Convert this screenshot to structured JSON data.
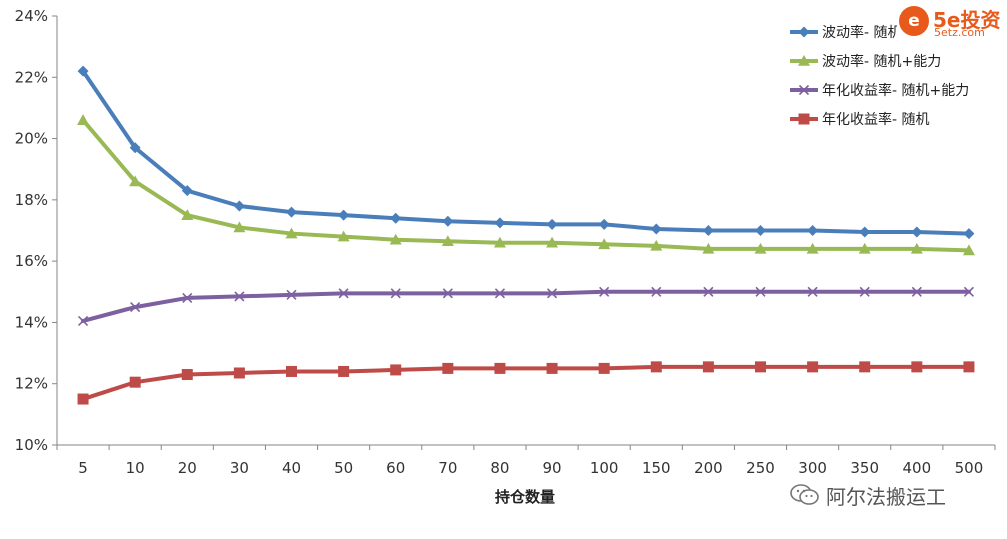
{
  "chart_data": {
    "type": "line",
    "xlabel": "持仓数量",
    "ylabel": "",
    "categories": [
      "5",
      "10",
      "20",
      "30",
      "40",
      "50",
      "60",
      "70",
      "80",
      "90",
      "100",
      "150",
      "200",
      "250",
      "300",
      "350",
      "400",
      "500"
    ],
    "y_ticks": [
      "10%",
      "12%",
      "14%",
      "16%",
      "18%",
      "20%",
      "22%",
      "24%"
    ],
    "ylim": [
      10,
      24
    ],
    "grid": false,
    "legend_position": "top-right",
    "series": [
      {
        "name": "波动率- 随机",
        "color": "#4a7ebb",
        "marker": "diamond",
        "values": [
          22.2,
          19.7,
          18.3,
          17.8,
          17.6,
          17.5,
          17.4,
          17.3,
          17.25,
          17.2,
          17.2,
          17.05,
          17.0,
          17.0,
          17.0,
          16.95,
          16.95,
          16.9
        ]
      },
      {
        "name": "波动率- 随机+能力",
        "color": "#98b954",
        "marker": "triangle",
        "values": [
          20.6,
          18.6,
          17.5,
          17.1,
          16.9,
          16.8,
          16.7,
          16.65,
          16.6,
          16.6,
          16.55,
          16.5,
          16.4,
          16.4,
          16.4,
          16.4,
          16.4,
          16.35
        ]
      },
      {
        "name": "年化收益率- 随机+能力",
        "color": "#7d60a0",
        "marker": "x",
        "values": [
          14.05,
          14.5,
          14.8,
          14.85,
          14.9,
          14.95,
          14.95,
          14.95,
          14.95,
          14.95,
          15.0,
          15.0,
          15.0,
          15.0,
          15.0,
          15.0,
          15.0,
          15.0
        ]
      },
      {
        "name": "年化收益率- 随机",
        "color": "#be4b48",
        "marker": "square",
        "values": [
          11.5,
          12.05,
          12.3,
          12.35,
          12.4,
          12.4,
          12.45,
          12.5,
          12.5,
          12.5,
          12.5,
          12.55,
          12.55,
          12.55,
          12.55,
          12.55,
          12.55,
          12.55
        ]
      }
    ]
  },
  "logo": {
    "circle_text": "e",
    "main_text": "5e投资",
    "sub_text": "5etz.com"
  },
  "watermark": {
    "text": "阿尔法搬运工",
    "icon": "wechat-icon"
  }
}
